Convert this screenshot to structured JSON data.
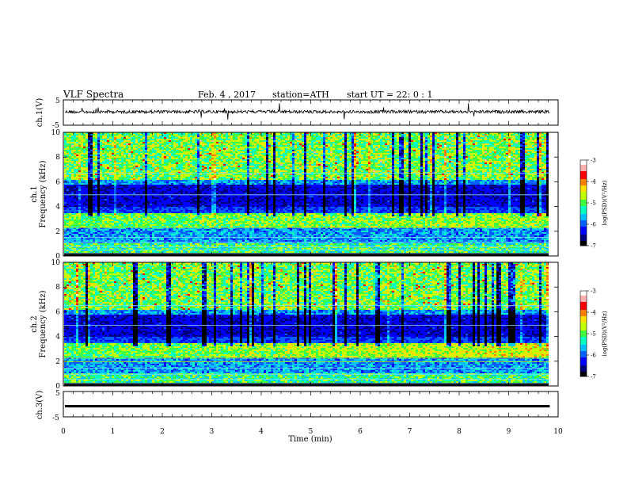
{
  "header": {
    "title": "VLF Spectra",
    "date": "Feb. 4 , 2017",
    "station": "station=ATH",
    "start": "start UT = 22: 0 : 1"
  },
  "chart_data": [
    {
      "type": "line",
      "id": "ch1-waveform",
      "ylabel": "ch.1(V)",
      "ylim": [
        -5,
        5
      ],
      "yticks": [
        "5",
        "-5"
      ],
      "xlim": [
        0,
        10
      ],
      "note_level": 0.3
    },
    {
      "type": "heatmap",
      "id": "ch1-spectrogram",
      "ylabel": "ch.1\nFrequency (kHz)",
      "ylabel_top": "ch.1",
      "ylabel_bottom": "Frequency (kHz)",
      "ylim": [
        0,
        10
      ],
      "yticks": [
        "0",
        "2",
        "4",
        "6",
        "8",
        "10"
      ],
      "xlim": [
        0,
        9.83
      ],
      "colorbar": {
        "label": "log(PSD)(V²/Hz)",
        "min": -7,
        "max": -3,
        "ticks": [
          "-3",
          "-4",
          "-5",
          "-6",
          "-7"
        ]
      }
    },
    {
      "type": "heatmap",
      "id": "ch2-spectrogram",
      "ylabel_top": "ch.2",
      "ylabel_bottom": "Frequency (kHz)",
      "ylim": [
        0,
        10
      ],
      "yticks": [
        "0",
        "2",
        "4",
        "6",
        "8",
        "10"
      ],
      "xlim": [
        0,
        9.83
      ],
      "colorbar": {
        "label": "log(PSD)(V²/Hz)",
        "min": -7,
        "max": -3,
        "ticks": [
          "-3",
          "-4",
          "-5",
          "-6",
          "-7"
        ]
      }
    },
    {
      "type": "line",
      "id": "ch3-waveform",
      "ylabel": "ch.3(V)",
      "ylim": [
        -5,
        5
      ],
      "yticks": [
        "5",
        "-5"
      ],
      "xlim": [
        0,
        10
      ],
      "level": -0.8
    }
  ],
  "xaxis": {
    "label": "Time (min)",
    "ticks": [
      "0",
      "1",
      "2",
      "3",
      "4",
      "5",
      "6",
      "7",
      "8",
      "9",
      "10"
    ],
    "range": [
      0,
      10
    ]
  },
  "colors": {
    "palette": [
      "#000000",
      "#00007f",
      "#0000ff",
      "#0060ff",
      "#00c0ff",
      "#00ffc0",
      "#40ff40",
      "#c0ff00",
      "#ffe000",
      "#ff8000",
      "#ff0000",
      "#ffb0b0",
      "#ffffff"
    ]
  }
}
